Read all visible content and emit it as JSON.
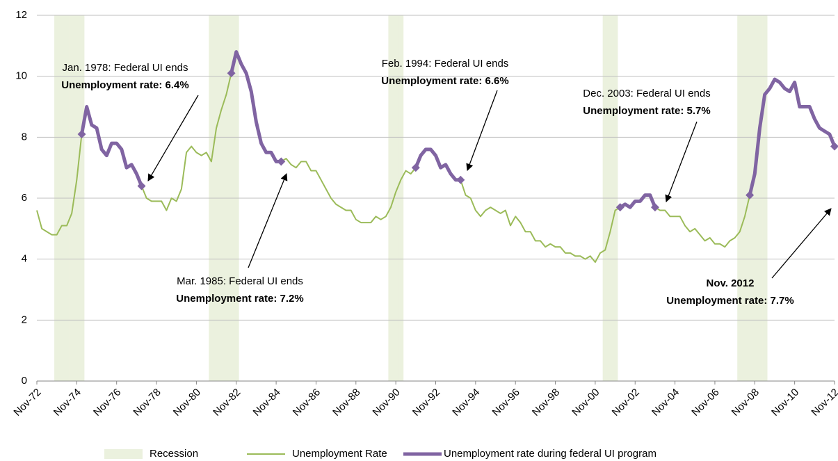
{
  "chart_data": {
    "type": "line",
    "categories": [
      "Nov-72",
      null,
      null,
      null,
      null,
      null,
      null,
      null,
      "Nov-74",
      null,
      null,
      null,
      null,
      null,
      null,
      null,
      "Nov-76",
      null,
      null,
      null,
      null,
      null,
      null,
      null,
      "Nov-78",
      null,
      null,
      null,
      null,
      null,
      null,
      null,
      "Nov-80",
      null,
      null,
      null,
      null,
      null,
      null,
      null,
      "Nov-82",
      null,
      null,
      null,
      null,
      null,
      null,
      null,
      "Nov-84",
      null,
      null,
      null,
      null,
      null,
      null,
      null,
      "Nov-86",
      null,
      null,
      null,
      null,
      null,
      null,
      null,
      "Nov-88",
      null,
      null,
      null,
      null,
      null,
      null,
      null,
      "Nov-90",
      null,
      null,
      null,
      null,
      null,
      null,
      null,
      "Nov-92",
      null,
      null,
      null,
      null,
      null,
      null,
      null,
      "Nov-94",
      null,
      null,
      null,
      null,
      null,
      null,
      null,
      "Nov-96",
      null,
      null,
      null,
      null,
      null,
      null,
      null,
      "Nov-98",
      null,
      null,
      null,
      null,
      null,
      null,
      null,
      "Nov-00",
      null,
      null,
      null,
      null,
      null,
      null,
      null,
      "Nov-02",
      null,
      null,
      null,
      null,
      null,
      null,
      null,
      "Nov-04",
      null,
      null,
      null,
      null,
      null,
      null,
      null,
      "Nov-06",
      null,
      null,
      null,
      null,
      null,
      null,
      null,
      "Nov-08",
      null,
      null,
      null,
      null,
      null,
      null,
      null,
      "Nov-10",
      null,
      null,
      null,
      null,
      null,
      null,
      null,
      "Nov-12"
    ],
    "series": [
      {
        "name": "Recession",
        "type": "bar",
        "color": "#ebf1de",
        "values": [
          null,
          null,
          null,
          null,
          12,
          12,
          12,
          12,
          12,
          12,
          null,
          null,
          null,
          null,
          null,
          null,
          null,
          null,
          null,
          null,
          null,
          null,
          null,
          null,
          null,
          null,
          null,
          null,
          null,
          null,
          null,
          null,
          null,
          null,
          null,
          12,
          12,
          12,
          12,
          12,
          12,
          null,
          null,
          null,
          null,
          null,
          null,
          null,
          null,
          null,
          null,
          null,
          null,
          null,
          null,
          null,
          null,
          null,
          null,
          null,
          null,
          null,
          null,
          null,
          null,
          null,
          null,
          null,
          null,
          null,
          null,
          12,
          12,
          12,
          null,
          null,
          null,
          null,
          null,
          null,
          null,
          null,
          null,
          null,
          null,
          null,
          null,
          null,
          null,
          null,
          null,
          null,
          null,
          null,
          null,
          null,
          null,
          null,
          null,
          null,
          null,
          null,
          null,
          null,
          null,
          null,
          null,
          null,
          null,
          null,
          null,
          null,
          null,
          null,
          12,
          12,
          12,
          null,
          null,
          null,
          null,
          null,
          null,
          null,
          null,
          null,
          null,
          null,
          null,
          null,
          null,
          null,
          null,
          null,
          null,
          null,
          null,
          null,
          null,
          null,
          null,
          12,
          12,
          12,
          12,
          12,
          12,
          null,
          null,
          null,
          null,
          null,
          null,
          null,
          null,
          null,
          null,
          null,
          null,
          null,
          null
        ]
      },
      {
        "name": "Unemployment Rate",
        "type": "line",
        "color": "#9bbb59",
        "values": [
          5.6,
          5.0,
          4.9,
          4.8,
          4.8,
          5.1,
          5.1,
          5.5,
          6.6,
          8.1,
          9.0,
          8.4,
          8.3,
          7.6,
          7.4,
          7.8,
          7.8,
          7.6,
          7.0,
          7.1,
          6.8,
          6.4,
          6.0,
          5.9,
          5.9,
          5.9,
          5.6,
          6.0,
          5.9,
          6.3,
          7.5,
          7.7,
          7.5,
          7.4,
          7.5,
          7.2,
          8.3,
          8.9,
          9.4,
          10.1,
          10.8,
          10.4,
          10.1,
          9.5,
          8.5,
          7.8,
          7.5,
          7.5,
          7.2,
          7.2,
          7.3,
          7.1,
          7.0,
          7.2,
          7.2,
          6.9,
          6.9,
          6.6,
          6.3,
          6.0,
          5.8,
          5.7,
          5.6,
          5.6,
          5.3,
          5.2,
          5.2,
          5.2,
          5.4,
          5.3,
          5.4,
          5.7,
          6.2,
          6.6,
          6.9,
          6.8,
          7.0,
          7.4,
          7.6,
          7.6,
          7.4,
          7.0,
          7.1,
          6.8,
          6.6,
          6.6,
          6.1,
          6.0,
          5.6,
          5.4,
          5.6,
          5.7,
          5.6,
          5.5,
          5.6,
          5.1,
          5.4,
          5.2,
          4.9,
          4.9,
          4.6,
          4.6,
          4.4,
          4.5,
          4.4,
          4.4,
          4.2,
          4.2,
          4.1,
          4.1,
          4.0,
          4.1,
          3.9,
          4.2,
          4.3,
          4.9,
          5.6,
          5.7,
          5.8,
          5.7,
          5.9,
          5.9,
          6.1,
          6.1,
          5.7,
          5.6,
          5.6,
          5.4,
          5.4,
          5.4,
          5.1,
          4.9,
          5.0,
          4.8,
          4.6,
          4.7,
          4.5,
          4.5,
          4.4,
          4.6,
          4.7,
          4.9,
          5.4,
          6.1,
          6.8,
          8.3,
          9.4,
          9.6,
          9.9,
          9.8,
          9.6,
          9.5,
          9.8,
          9.0,
          9.0,
          9.0,
          8.6,
          8.3,
          8.2,
          8.1,
          7.7
        ]
      },
      {
        "name": "Unemployment rate during federal UI program",
        "type": "line",
        "color": "#8064a2",
        "values": [
          null,
          null,
          null,
          null,
          null,
          null,
          null,
          null,
          null,
          8.1,
          9.0,
          8.4,
          8.3,
          7.6,
          7.4,
          7.8,
          7.8,
          7.6,
          7.0,
          7.1,
          6.8,
          6.4,
          null,
          null,
          null,
          null,
          null,
          null,
          null,
          null,
          null,
          null,
          null,
          null,
          null,
          null,
          null,
          null,
          null,
          10.1,
          10.8,
          10.4,
          10.1,
          9.5,
          8.5,
          7.8,
          7.5,
          7.5,
          7.2,
          7.2,
          null,
          null,
          null,
          null,
          null,
          null,
          null,
          null,
          null,
          null,
          null,
          null,
          null,
          null,
          null,
          null,
          null,
          null,
          null,
          null,
          null,
          null,
          null,
          null,
          null,
          null,
          7.0,
          7.4,
          7.6,
          7.6,
          7.4,
          7.0,
          7.1,
          6.8,
          6.6,
          6.6,
          null,
          null,
          null,
          null,
          null,
          null,
          null,
          null,
          null,
          null,
          null,
          null,
          null,
          null,
          null,
          null,
          null,
          null,
          null,
          null,
          null,
          null,
          null,
          null,
          null,
          null,
          null,
          null,
          null,
          null,
          null,
          5.7,
          5.8,
          5.7,
          5.9,
          5.9,
          6.1,
          6.1,
          5.7,
          null,
          null,
          null,
          null,
          null,
          null,
          null,
          null,
          null,
          null,
          null,
          null,
          null,
          null,
          null,
          null,
          null,
          null,
          6.1,
          6.8,
          8.3,
          9.4,
          9.6,
          9.9,
          9.8,
          9.6,
          9.5,
          9.8,
          9.0,
          9.0,
          9.0,
          8.6,
          8.3,
          8.2,
          8.1,
          7.7
        ]
      }
    ],
    "ylim": [
      0,
      12
    ],
    "yticks": [
      0,
      2,
      4,
      6,
      8,
      10,
      12
    ],
    "grid": true,
    "annotations": [
      {
        "lines": [
          "Jan. 1978: Federal UI ends",
          "Unemployment rate: 6.4%"
        ]
      },
      {
        "lines": [
          "Mar. 1985: Federal UI ends",
          "Unemployment rate: 7.2%"
        ]
      },
      {
        "lines": [
          "Feb. 1994: Federal UI ends",
          "Unemployment rate: 6.6%"
        ]
      },
      {
        "lines": [
          "Dec. 2003: Federal UI ends",
          "Unemployment rate: 5.7%"
        ]
      },
      {
        "lines": [
          "Nov. 2012",
          "Unemployment rate: 7.7%"
        ]
      }
    ]
  }
}
